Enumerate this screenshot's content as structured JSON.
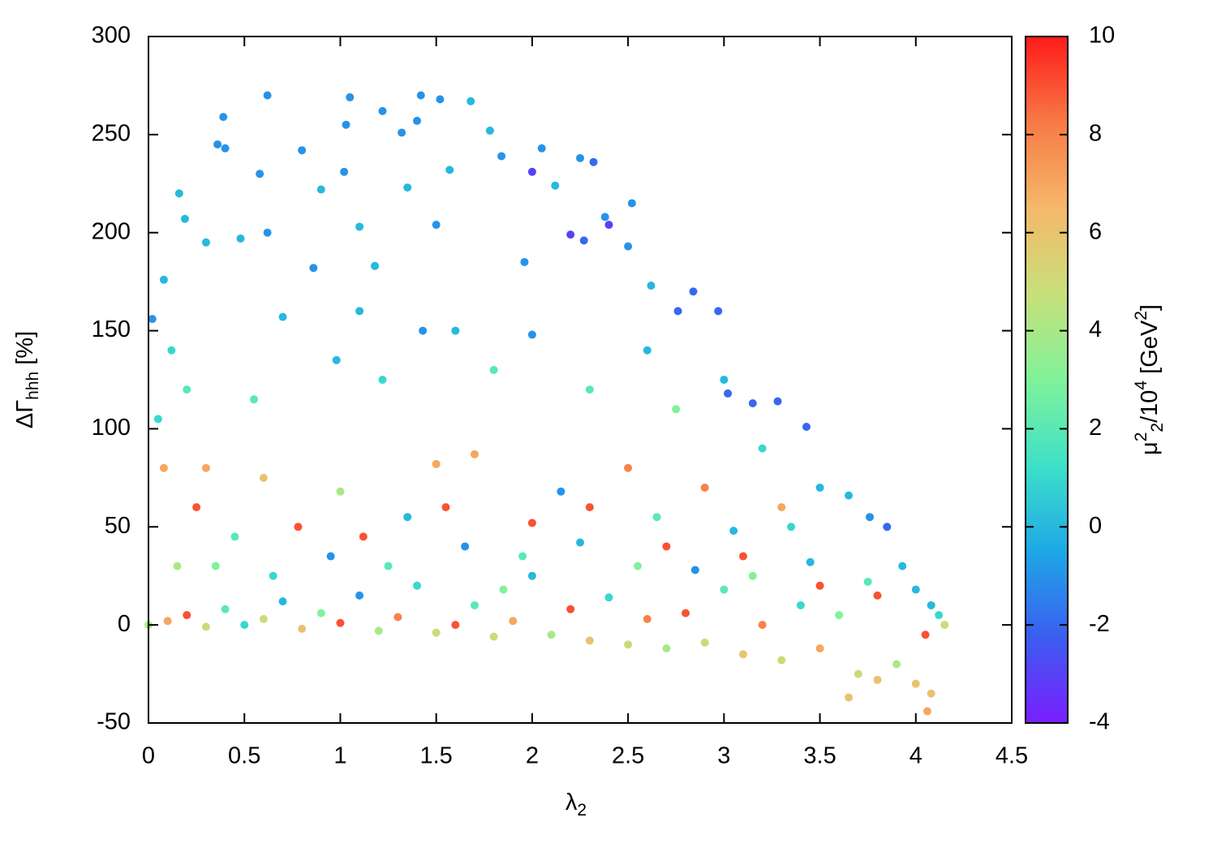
{
  "chart_data": {
    "type": "scatter",
    "xlabel": [
      {
        "text": "λ",
        "pos": "base"
      },
      {
        "text": "2",
        "pos": "sub"
      }
    ],
    "ylabel": [
      {
        "text": "ΔΓ",
        "pos": "base"
      },
      {
        "text": "hhh",
        "pos": "sub"
      },
      {
        "text": " [%]",
        "pos": "base"
      }
    ],
    "colorbar_label": [
      {
        "text": "μ",
        "pos": "base"
      },
      {
        "text": "2",
        "pos": "sup"
      },
      {
        "text": "2",
        "pos": "sub"
      },
      {
        "text": "/10",
        "pos": "base"
      },
      {
        "text": "4",
        "pos": "sup"
      },
      {
        "text": " [GeV",
        "pos": "base"
      },
      {
        "text": "2",
        "pos": "sup"
      },
      {
        "text": "]",
        "pos": "base"
      }
    ],
    "xlim": [
      0,
      4.5
    ],
    "xticks": [
      0,
      0.5,
      1,
      1.5,
      2,
      2.5,
      3,
      3.5,
      4,
      4.5
    ],
    "ylim": [
      -50,
      300
    ],
    "yticks": [
      -50,
      0,
      50,
      100,
      150,
      200,
      250,
      300
    ],
    "clim": [
      -4,
      10
    ],
    "cticks": [
      -4,
      -2,
      0,
      2,
      4,
      6,
      8,
      10
    ],
    "colormap": [
      "#7a1fff",
      "#3b5df0",
      "#1ea8e6",
      "#3ee0c8",
      "#80f29a",
      "#c8e07a",
      "#f5b86a",
      "#f77a45",
      "#ff1a1a"
    ],
    "x": [
      0.62,
      1.05,
      1.42,
      1.52,
      1.68,
      1.22,
      0.39,
      1.4,
      1.03,
      1.78,
      1.32,
      0.8,
      2.05,
      0.36,
      0.4,
      2.25,
      2.32,
      1.84,
      1.02,
      2.0,
      0.58,
      1.57,
      0.16,
      0.9,
      1.35,
      2.12,
      2.52,
      0.19,
      0.62,
      1.1,
      2.38,
      2.4,
      2.2,
      1.5,
      0.3,
      2.27,
      2.5,
      0.86,
      1.18,
      2.62,
      0.08,
      1.96,
      0.48,
      2.84,
      2.76,
      2.97,
      0.02,
      1.6,
      1.1,
      0.7,
      0.12,
      2.0,
      2.6,
      3.0,
      3.02,
      3.15,
      3.28,
      3.43,
      1.43,
      0.98,
      0.2,
      0.55,
      1.22,
      1.8,
      2.3,
      2.75,
      3.2,
      3.5,
      3.65,
      3.76,
      3.85,
      3.93,
      4.0,
      4.08,
      0.05,
      0.3,
      0.08,
      0.6,
      1.0,
      1.5,
      1.7,
      2.5,
      2.9,
      3.3,
      0.25,
      0.78,
      1.12,
      1.55,
      2.0,
      2.3,
      2.7,
      3.1,
      3.5,
      3.8,
      4.05,
      0.0,
      0.1,
      0.2,
      0.3,
      0.4,
      0.5,
      0.6,
      0.7,
      0.8,
      0.9,
      1.0,
      1.1,
      1.2,
      1.3,
      1.4,
      1.5,
      1.6,
      1.7,
      1.8,
      1.9,
      2.0,
      2.1,
      2.2,
      2.3,
      2.4,
      2.5,
      2.6,
      2.7,
      2.8,
      2.9,
      3.0,
      3.1,
      3.2,
      3.3,
      3.4,
      3.5,
      3.6,
      3.65,
      3.7,
      3.8,
      3.9,
      4.0,
      4.08,
      4.06,
      4.15,
      4.12,
      0.35,
      0.65,
      0.95,
      1.25,
      1.65,
      1.95,
      2.25,
      2.55,
      2.85,
      3.15,
      3.45,
      3.75,
      0.45,
      1.35,
      2.15,
      2.65,
      3.05,
      3.35,
      0.15,
      1.85
    ],
    "values": [
      270,
      269,
      270,
      268,
      267,
      262,
      259,
      257,
      255,
      252,
      251,
      242,
      243,
      245,
      243,
      238,
      236,
      239,
      231,
      231,
      230,
      232,
      220,
      222,
      223,
      224,
      215,
      207,
      200,
      203,
      208,
      204,
      199,
      204,
      195,
      196,
      193,
      182,
      183,
      173,
      176,
      185,
      197,
      170,
      160,
      160,
      156,
      150,
      160,
      157,
      140,
      148,
      140,
      125,
      118,
      113,
      114,
      101,
      150,
      135,
      120,
      115,
      125,
      130,
      120,
      110,
      90,
      70,
      66,
      55,
      50,
      30,
      18,
      10,
      105,
      80,
      80,
      75,
      68,
      82,
      87,
      80,
      70,
      60,
      60,
      50,
      45,
      60,
      52,
      60,
      40,
      35,
      20,
      15,
      -5,
      0,
      2,
      5,
      -1,
      8,
      0,
      3,
      12,
      -2,
      6,
      1,
      15,
      -3,
      4,
      20,
      -4,
      0,
      10,
      -6,
      2,
      25,
      -5,
      8,
      -8,
      14,
      -10,
      3,
      -12,
      6,
      -9,
      18,
      -15,
      0,
      -18,
      10,
      -12,
      5,
      -37,
      -25,
      -28,
      -20,
      -30,
      -35,
      -44,
      0,
      5,
      30,
      25,
      35,
      30,
      40,
      35,
      42,
      30,
      28,
      25,
      32,
      22,
      45,
      55,
      68,
      55,
      48,
      50,
      30,
      18
    ],
    "color_values": [
      -1,
      -1,
      -1,
      -1,
      0,
      -1,
      -1,
      -1,
      -1,
      0,
      -1,
      -1,
      -1,
      -1,
      -1,
      -1,
      -2,
      -1,
      -1,
      -3,
      -1,
      0,
      0,
      0,
      0,
      0,
      -1,
      0,
      -1,
      0,
      -1,
      -3,
      -3,
      -1,
      0,
      -2,
      -1,
      -1,
      0,
      0,
      0,
      -1,
      0,
      -2,
      -2,
      -2,
      -1,
      0,
      0,
      0,
      1,
      -1,
      0,
      0,
      -2,
      -2,
      -2,
      -2,
      -1,
      0,
      2,
      2,
      1,
      2,
      2,
      3,
      1,
      0,
      0,
      -1,
      -2,
      0,
      0,
      0,
      1,
      7,
      7,
      6,
      4,
      7,
      7,
      8,
      8,
      7,
      9,
      9,
      9,
      9,
      9,
      9,
      9,
      9,
      9,
      9,
      9,
      4,
      7,
      9,
      5,
      2,
      1,
      5,
      0,
      6,
      3,
      9,
      -1,
      4,
      8,
      1,
      5,
      9,
      2,
      5,
      7,
      0,
      4,
      9,
      6,
      1,
      5,
      8,
      4,
      9,
      5,
      2,
      6,
      8,
      5,
      1,
      7,
      3,
      6,
      5,
      6,
      4,
      6,
      6,
      7,
      5,
      1,
      3,
      1,
      -1,
      2,
      -1,
      2,
      0,
      3,
      -1,
      3,
      0,
      2,
      2,
      0,
      -1,
      2,
      0,
      1,
      4,
      3
    ]
  }
}
